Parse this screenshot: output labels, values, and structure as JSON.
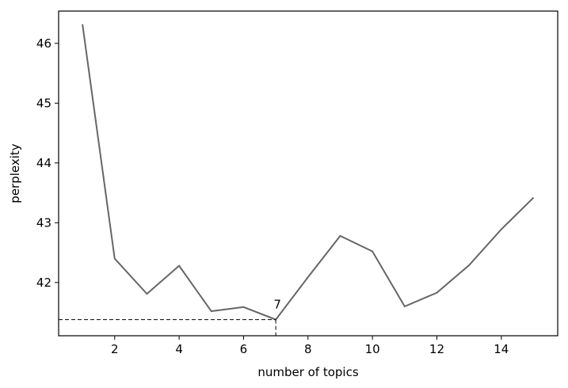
{
  "chart_data": {
    "type": "line",
    "xlabel": "number of topics",
    "ylabel": "perplexity",
    "annotation": "7",
    "x": [
      1,
      2,
      3,
      4,
      5,
      6,
      7,
      8,
      9,
      10,
      11,
      12,
      13,
      14,
      15
    ],
    "series": [
      {
        "color": "#666666",
        "values": [
          46.32,
          42.4,
          41.81,
          42.28,
          41.52,
          41.59,
          41.38,
          42.09,
          42.78,
          42.52,
          41.6,
          41.83,
          42.29,
          42.89,
          43.42
        ]
      }
    ],
    "xlim": [
      0.26,
      15.75
    ],
    "ylim": [
      41.11,
      46.54
    ],
    "xticks": [
      2,
      4,
      6,
      8,
      10,
      12,
      14
    ],
    "yticks": [
      42,
      43,
      44,
      45,
      46
    ],
    "grid": false
  }
}
